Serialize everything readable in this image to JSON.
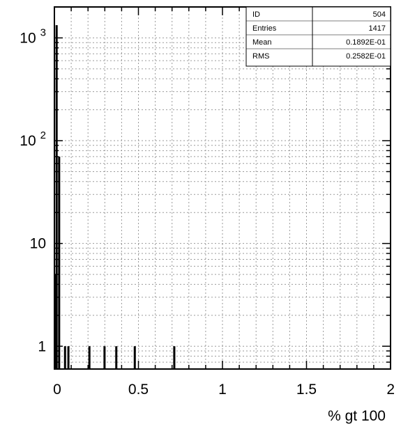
{
  "chart_data": {
    "type": "bar",
    "xlabel": "% gt 100",
    "ylabel": "",
    "xlim": [
      0,
      2
    ],
    "ylim": [
      0.6,
      2000
    ],
    "yscale": "log",
    "grid": true,
    "x_ticks": [
      "0",
      "0.5",
      "1",
      "1.5",
      "2"
    ],
    "y_ticks": [
      {
        "value": 1,
        "base": "1",
        "exp": ""
      },
      {
        "value": 10,
        "base": "10",
        "exp": ""
      },
      {
        "value": 100,
        "base": "10",
        "exp": "2"
      },
      {
        "value": 1000,
        "base": "10",
        "exp": "3"
      }
    ],
    "bins": [
      {
        "x": 0.0,
        "value": 5
      },
      {
        "x": 0.005,
        "value": 1330
      },
      {
        "x": 0.02,
        "value": 70
      },
      {
        "x": 0.055,
        "value": 1
      },
      {
        "x": 0.075,
        "value": 1
      },
      {
        "x": 0.2,
        "value": 1
      },
      {
        "x": 0.29,
        "value": 1
      },
      {
        "x": 0.36,
        "value": 1
      },
      {
        "x": 0.47,
        "value": 1
      },
      {
        "x": 0.705,
        "value": 1
      }
    ],
    "stats": [
      {
        "label": "ID",
        "value": "504"
      },
      {
        "label": "Entries",
        "value": "1417"
      },
      {
        "label": "Mean",
        "value": "0.1892E-01"
      },
      {
        "label": "RMS",
        "value": "0.2582E-01"
      }
    ],
    "legend_position": "top-right"
  }
}
